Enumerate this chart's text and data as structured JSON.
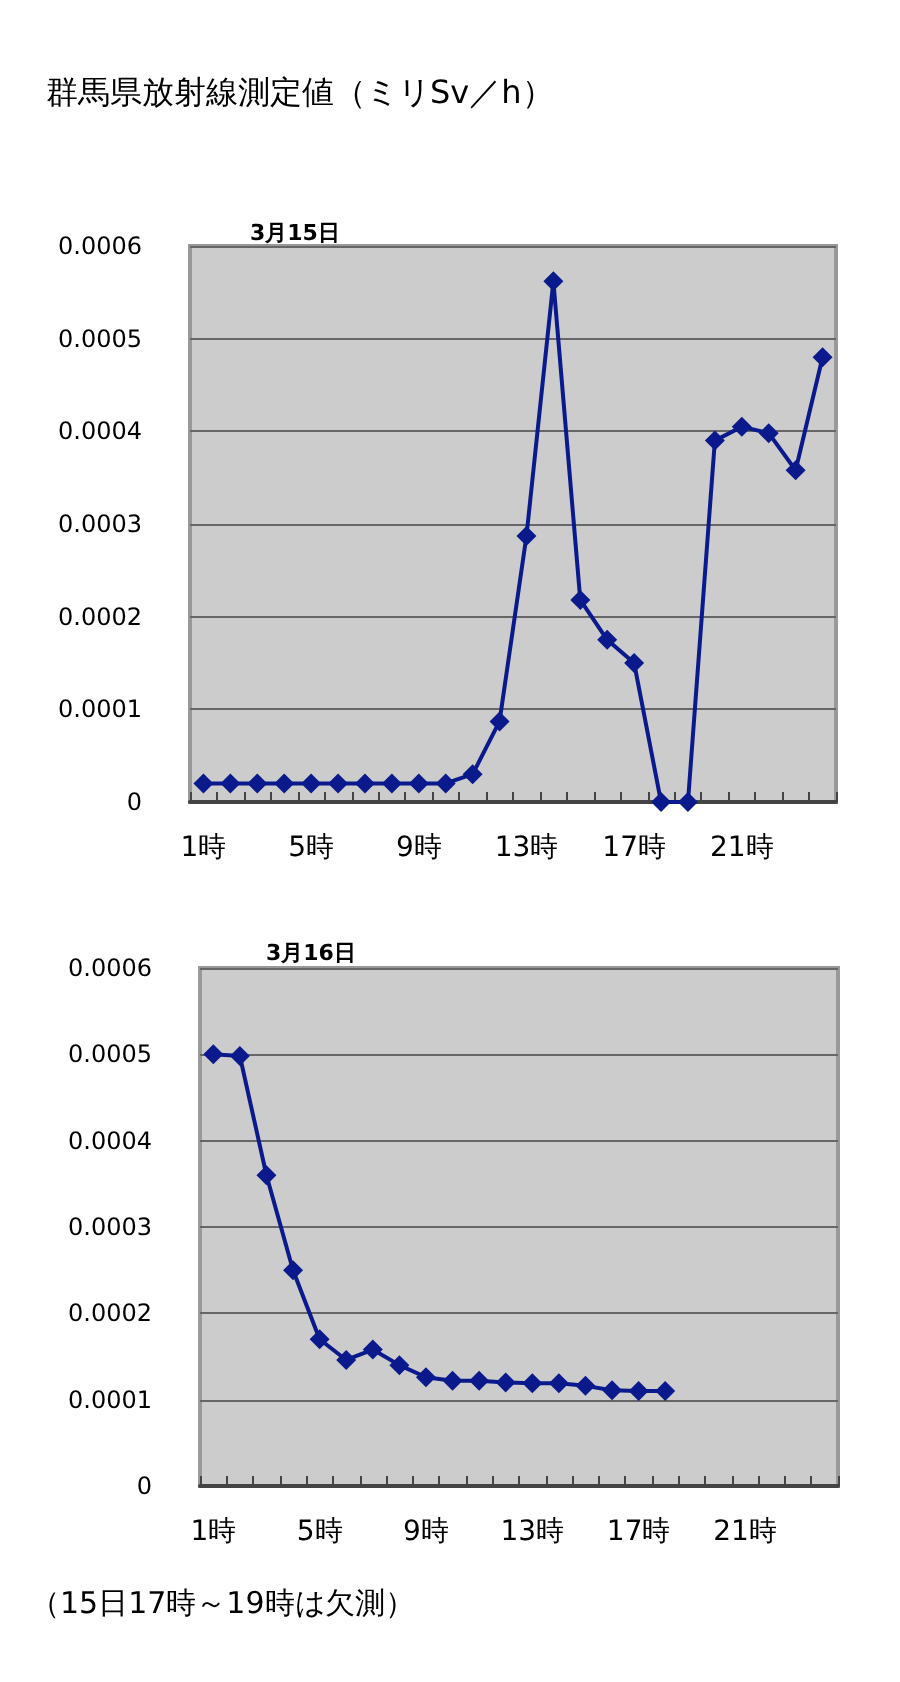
{
  "chart_data": [
    {
      "type": "line",
      "title": "群馬県放射線測定値（ミリSv／h）",
      "subtitle": "3月15日",
      "categories": [
        "1時",
        null,
        null,
        null,
        "5時",
        null,
        null,
        null,
        "9時",
        null,
        null,
        null,
        "13時",
        null,
        null,
        null,
        "17時",
        null,
        null,
        null,
        "21時",
        null,
        null,
        null
      ],
      "series": [
        {
          "color": "#0a1a8c",
          "values": [
            2e-05,
            2e-05,
            2e-05,
            2e-05,
            2e-05,
            2e-05,
            2e-05,
            2e-05,
            2e-05,
            2e-05,
            3e-05,
            8.7e-05,
            0.000287,
            0.000562,
            0.000218,
            0.000175,
            0.00015,
            0,
            0,
            0.00039,
            0.000405,
            0.000398,
            0.000358,
            0.00048
          ]
        }
      ],
      "ylim": [
        0,
        0.0006
      ],
      "yticks": [
        0,
        0.0001,
        0.0002,
        0.0003,
        0.0004,
        0.0005,
        0.0006
      ],
      "grid": "y",
      "marker": "diamond",
      "line_style": "solid"
    },
    {
      "type": "line",
      "title": "3月16日",
      "categories": [
        "1時",
        null,
        null,
        null,
        "5時",
        null,
        null,
        null,
        "9時",
        null,
        null,
        null,
        "13時",
        null,
        null,
        null,
        "17時",
        null,
        null,
        null,
        "21時",
        null,
        null,
        null
      ],
      "series": [
        {
          "color": "#0a1a8c",
          "values": [
            0.0005,
            0.000498,
            0.00036,
            0.00025,
            0.00017,
            0.000146,
            0.000158,
            0.00014,
            0.000126,
            0.000122,
            0.000122,
            0.00012,
            0.000119,
            0.000119,
            0.000116,
            0.000111,
            0.00011,
            0.00011,
            null,
            null,
            null,
            null,
            null,
            null
          ]
        }
      ],
      "ylim": [
        0,
        0.0006
      ],
      "yticks": [
        0,
        0.0001,
        0.0002,
        0.0003,
        0.0004,
        0.0005,
        0.0006
      ],
      "grid": "y",
      "marker": "diamond",
      "line_style": "solid",
      "annotations": [
        "（15日17時～19時は欠測）"
      ]
    }
  ]
}
